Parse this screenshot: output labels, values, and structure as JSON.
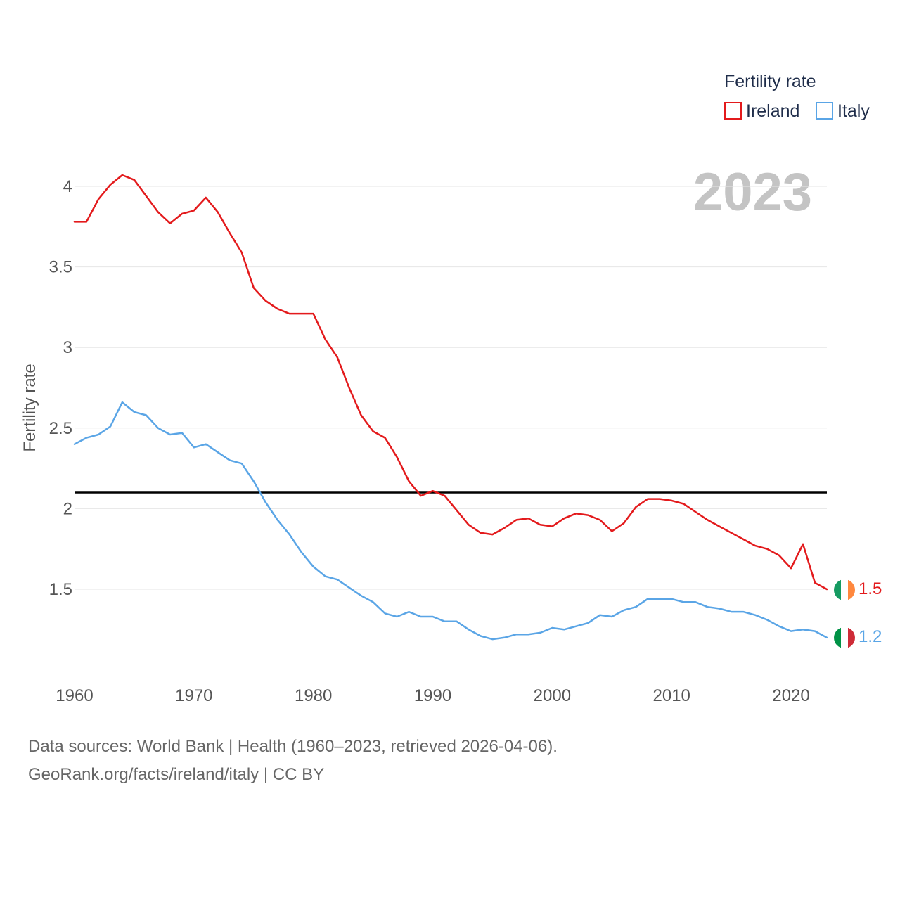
{
  "chart_data": {
    "type": "line",
    "title": "",
    "xlabel": "",
    "ylabel": "Fertility rate",
    "xlim": [
      1960,
      2023
    ],
    "ylim": [
      1.0,
      4.2
    ],
    "y_ticks": [
      1.5,
      2,
      2.5,
      3,
      3.5,
      4
    ],
    "y_tick_labels": [
      "1.5",
      "2",
      "2.5",
      "3",
      "3.5",
      "4"
    ],
    "x_ticks": [
      1960,
      1970,
      1980,
      1990,
      2000,
      2010,
      2020
    ],
    "x_tick_labels": [
      "1960",
      "1970",
      "1980",
      "1990",
      "2000",
      "2010",
      "2020"
    ],
    "grid": true,
    "reference_line": 2.1,
    "year_watermark": "2023",
    "legend": {
      "title": "Fertility rate",
      "position": "top-right"
    },
    "x": [
      1960,
      1961,
      1962,
      1963,
      1964,
      1965,
      1966,
      1967,
      1968,
      1969,
      1970,
      1971,
      1972,
      1973,
      1974,
      1975,
      1976,
      1977,
      1978,
      1979,
      1980,
      1981,
      1982,
      1983,
      1984,
      1985,
      1986,
      1987,
      1988,
      1989,
      1990,
      1991,
      1992,
      1993,
      1994,
      1995,
      1996,
      1997,
      1998,
      1999,
      2000,
      2001,
      2002,
      2003,
      2004,
      2005,
      2006,
      2007,
      2008,
      2009,
      2010,
      2011,
      2012,
      2013,
      2014,
      2015,
      2016,
      2017,
      2018,
      2019,
      2020,
      2021,
      2022,
      2023
    ],
    "series": [
      {
        "name": "Ireland",
        "color": "#e31a1c",
        "end_label": "1.5",
        "flag_colors": [
          "#169b62",
          "#ffffff",
          "#ff883e"
        ],
        "values": [
          3.78,
          3.78,
          3.92,
          4.01,
          4.07,
          4.04,
          3.94,
          3.84,
          3.77,
          3.83,
          3.85,
          3.93,
          3.84,
          3.71,
          3.59,
          3.37,
          3.29,
          3.24,
          3.21,
          3.21,
          3.21,
          3.05,
          2.94,
          2.75,
          2.58,
          2.48,
          2.44,
          2.32,
          2.17,
          2.08,
          2.11,
          2.08,
          1.99,
          1.9,
          1.85,
          1.84,
          1.88,
          1.93,
          1.94,
          1.9,
          1.89,
          1.94,
          1.97,
          1.96,
          1.93,
          1.86,
          1.91,
          2.01,
          2.06,
          2.06,
          2.05,
          2.03,
          1.98,
          1.93,
          1.89,
          1.85,
          1.81,
          1.77,
          1.75,
          1.71,
          1.63,
          1.78,
          1.54,
          1.5
        ]
      },
      {
        "name": "Italy",
        "color": "#5aa5e6",
        "end_label": "1.2",
        "flag_colors": [
          "#009246",
          "#ffffff",
          "#ce2b37"
        ],
        "values": [
          2.4,
          2.44,
          2.46,
          2.51,
          2.66,
          2.6,
          2.58,
          2.5,
          2.46,
          2.47,
          2.38,
          2.4,
          2.35,
          2.3,
          2.28,
          2.17,
          2.04,
          1.93,
          1.84,
          1.73,
          1.64,
          1.58,
          1.56,
          1.51,
          1.46,
          1.42,
          1.35,
          1.33,
          1.36,
          1.33,
          1.33,
          1.3,
          1.3,
          1.25,
          1.21,
          1.19,
          1.2,
          1.22,
          1.22,
          1.23,
          1.26,
          1.25,
          1.27,
          1.29,
          1.34,
          1.33,
          1.37,
          1.39,
          1.44,
          1.44,
          1.44,
          1.42,
          1.42,
          1.39,
          1.38,
          1.36,
          1.36,
          1.34,
          1.31,
          1.27,
          1.24,
          1.25,
          1.24,
          1.2
        ]
      }
    ]
  },
  "footer": {
    "source_line": "Data sources: World Bank | Health (1960–2023, retrieved 2026-04-06).",
    "credit_line": "GeoRank.org/facts/ireland/italy | CC BY"
  }
}
